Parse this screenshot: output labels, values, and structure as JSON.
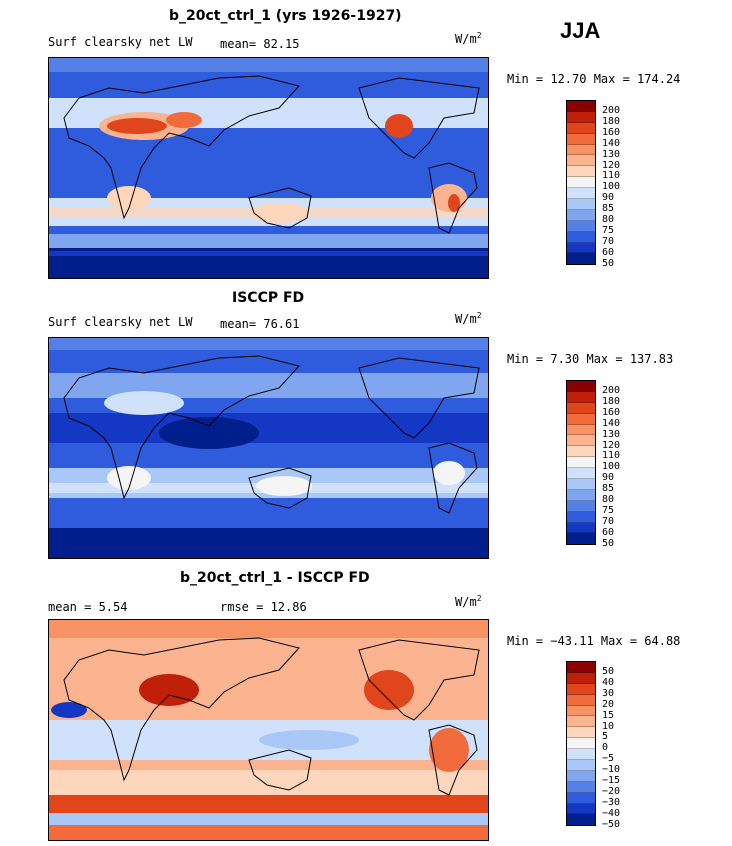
{
  "season": "JJA",
  "panels": [
    {
      "title": "b_20ct_ctrl_1 (yrs 1926-1927)",
      "left_label": "Surf clearsky net LW",
      "stat1": "mean=  82.15",
      "stat2": "",
      "units": "W/m",
      "units_sup": "2",
      "minmax": "Min =   12.70 Max = 174.24",
      "colorbar_labels": [
        "200",
        "180",
        "160",
        "140",
        "130",
        "120",
        "110",
        "100",
        "90",
        "85",
        "80",
        "75",
        "70",
        "60",
        "50"
      ],
      "colorbar_colors": [
        "#8b0000",
        "#c0200a",
        "#e0451c",
        "#f26b3c",
        "#f79263",
        "#fbb48f",
        "#fdd6bc",
        "#f5f5f5",
        "#cfe1fb",
        "#a9c7f7",
        "#7fa6ef",
        "#5581e6",
        "#2f5cdc",
        "#1437c4",
        "#001e8c"
      ]
    },
    {
      "title": "ISCCP FD",
      "left_label": "Surf clearsky net LW",
      "stat1": "mean=  76.61",
      "stat2": "",
      "units": "W/m",
      "units_sup": "2",
      "minmax": "Min =    7.30 Max = 137.83",
      "colorbar_labels": [
        "200",
        "180",
        "160",
        "140",
        "130",
        "120",
        "110",
        "100",
        "90",
        "85",
        "80",
        "75",
        "70",
        "60",
        "50"
      ],
      "colorbar_colors": [
        "#8b0000",
        "#c0200a",
        "#e0451c",
        "#f26b3c",
        "#f79263",
        "#fbb48f",
        "#fdd6bc",
        "#f5f5f5",
        "#cfe1fb",
        "#a9c7f7",
        "#7fa6ef",
        "#5581e6",
        "#2f5cdc",
        "#1437c4",
        "#001e8c"
      ]
    },
    {
      "title": "b_20ct_ctrl_1 - ISCCP FD",
      "left_label": "mean =    5.54",
      "stat1": "rmse =   12.86",
      "stat2": "",
      "units": "W/m",
      "units_sup": "2",
      "minmax": "Min = −43.11 Max =  64.88",
      "colorbar_labels": [
        "50",
        "40",
        "30",
        "20",
        "15",
        "10",
        "5",
        "0",
        "−5",
        "−10",
        "−15",
        "−20",
        "−30",
        "−40",
        "−50"
      ],
      "colorbar_colors": [
        "#8b0000",
        "#c0200a",
        "#e0451c",
        "#f26b3c",
        "#f79263",
        "#fbb48f",
        "#fdd6bc",
        "#f5f5f5",
        "#cfe1fb",
        "#a9c7f7",
        "#7fa6ef",
        "#5581e6",
        "#2f5cdc",
        "#1437c4",
        "#001e8c"
      ]
    }
  ],
  "map_fields": {
    "panel1": {
      "background": "#2f5cdc",
      "bands": [
        "#1437c4",
        "#5581e6",
        "#cfe1fb",
        "#a9c7f7",
        "#fdd6bc",
        "#cfe1fb",
        "#5581e6",
        "#2f5cdc",
        "#001e8c"
      ]
    },
    "panel2": {
      "background": "#2f5cdc",
      "bands": [
        "#1437c4",
        "#5581e6",
        "#a9c7f7",
        "#7fa6ef",
        "#cfe1fb",
        "#f5f5f5",
        "#5581e6",
        "#2f5cdc",
        "#001e8c"
      ]
    },
    "panel3": {
      "background": "#f79263",
      "bands": [
        "#e0451c",
        "#fbb48f",
        "#cfe1fb",
        "#fdd6bc",
        "#f79263",
        "#e0451c",
        "#fdd6bc",
        "#a9c7f7",
        "#1437c4"
      ]
    }
  }
}
